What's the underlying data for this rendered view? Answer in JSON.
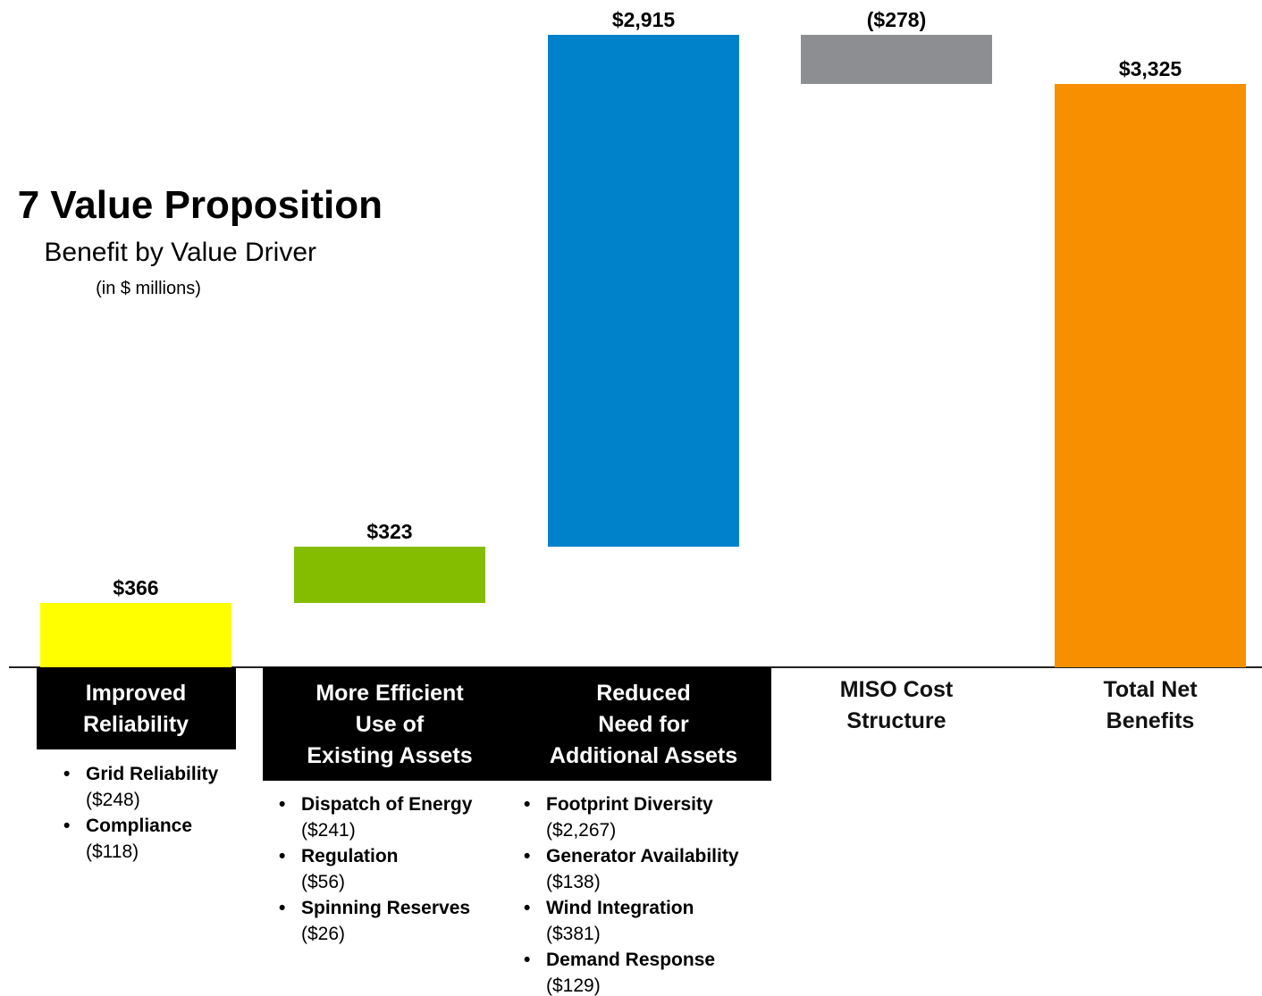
{
  "chart_data": {
    "type": "waterfall",
    "title": "7 Value Proposition",
    "subtitle": "Benefit by Value Driver",
    "unit_note": "(in $ millions)",
    "categories": [
      "Improved\nReliability",
      "More Efficient\nUse of\nExisting Assets",
      "Reduced\nNeed for\nAdditional Assets",
      "MISO Cost\nStructure",
      "Total Net\nBenefits"
    ],
    "values": [
      366,
      323,
      2915,
      -278,
      3325
    ],
    "value_labels": [
      "$366",
      "$323",
      "$2,915",
      "($278)",
      "$3,325"
    ],
    "colors": [
      "#ffff00",
      "#84bd00",
      "#0082ca",
      "#8d8e92",
      "#f78f00"
    ],
    "drivers": [
      [
        {
          "name": "Grid Reliability",
          "value": "($248)"
        },
        {
          "name": "Compliance",
          "value": "($118)"
        }
      ],
      [
        {
          "name": "Dispatch of Energy",
          "value": "($241)"
        },
        {
          "name": "Regulation",
          "value": "($56)"
        },
        {
          "name": "Spinning Reserves",
          "value": "($26)"
        }
      ],
      [
        {
          "name": "Footprint Diversity",
          "value": "($2,267)"
        },
        {
          "name": "Generator Availability",
          "value": "($138)"
        },
        {
          "name": "Wind Integration",
          "value": "($381)"
        },
        {
          "name": "Demand Response",
          "value": "($129)"
        }
      ],
      [],
      []
    ]
  }
}
